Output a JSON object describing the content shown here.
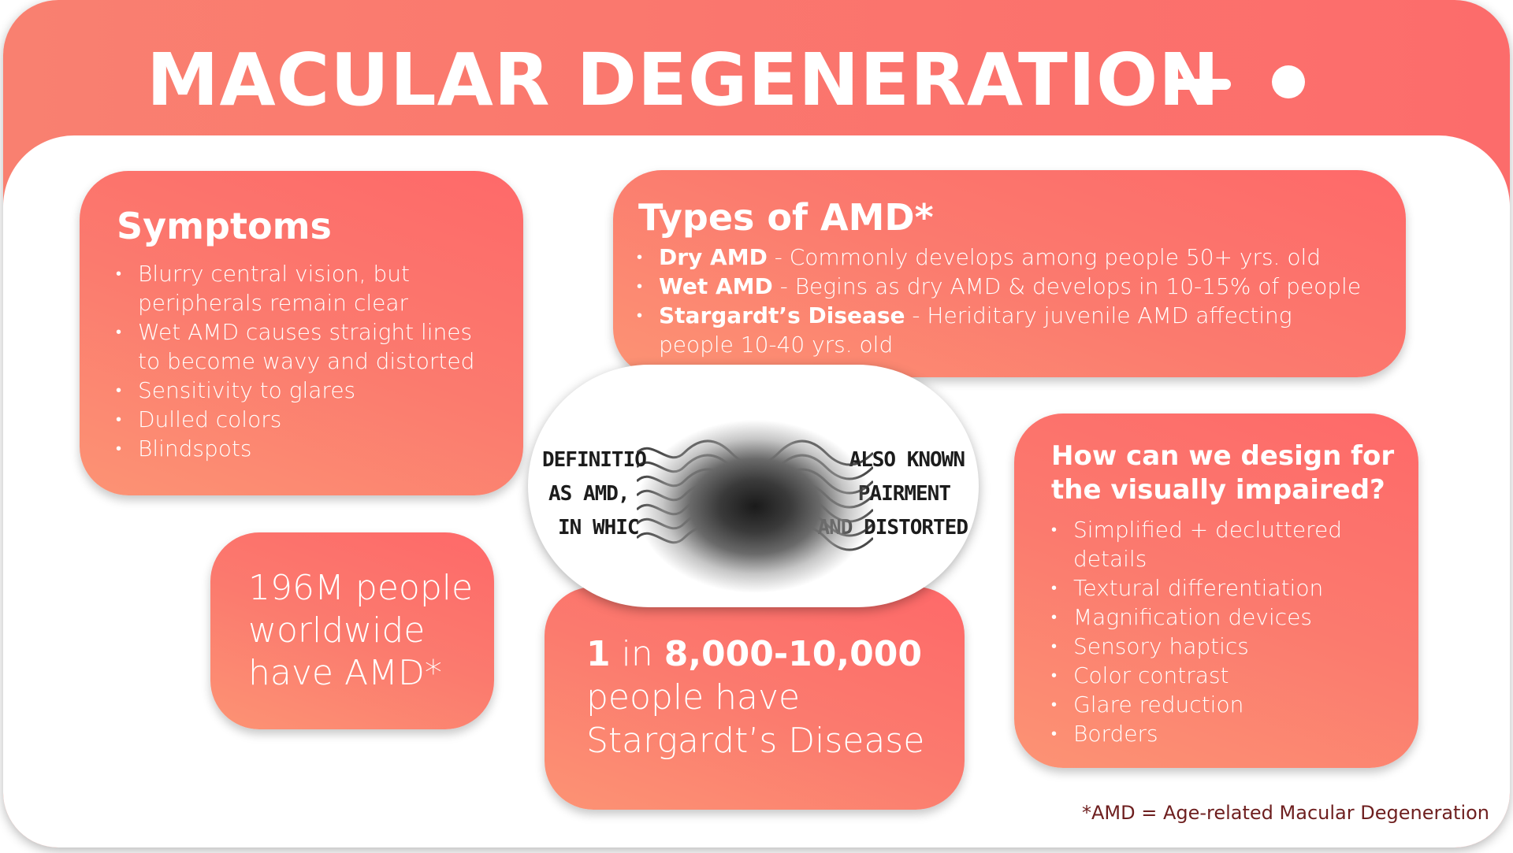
{
  "header": {
    "title": "MACULAR DEGENERATION"
  },
  "symptoms": {
    "heading": "Symptoms",
    "items": [
      [
        "Blurry central vision, but",
        "peripherals remain clear"
      ],
      [
        "Wet AMD causes straight lines",
        "to become wavy and distorted"
      ],
      [
        "Sensitivity to glares"
      ],
      [
        "Dulled colors"
      ],
      [
        "Blindspots"
      ]
    ]
  },
  "types": {
    "heading": "Types of AMD*",
    "items": [
      {
        "name": "Dry AMD",
        "desc": " - Commonly develops among people 50+ yrs. old",
        "cont": ""
      },
      {
        "name": "Wet AMD",
        "desc": " - Begins as dry AMD & develops in 10-15% of people",
        "cont": ""
      },
      {
        "name": "Stargardt’s Disease",
        "desc": " - Heriditary juvenile AMD affecting",
        "cont": "people 10-40 yrs. old"
      }
    ]
  },
  "design": {
    "heading": "How can we design for\nthe visually impaired?",
    "items": [
      [
        "Simplified + decluttered",
        "details"
      ],
      [
        "Textural differentiation"
      ],
      [
        "Magnification devices"
      ],
      [
        "Sensory haptics"
      ],
      [
        "Color contrast"
      ],
      [
        "Glare reduction"
      ],
      [
        "Borders"
      ]
    ]
  },
  "stats": {
    "worldwide": "196M people\nworldwide\nhave AMD*",
    "stargardt": {
      "num1": "1",
      "mid": " in ",
      "num2": "8,000-10,000",
      "line2": "people have",
      "line3": "Stargardt’s Disease"
    }
  },
  "simulation": {
    "lines": [
      {
        "left": "DEFINITIO",
        "right": "ALSO KNOWN"
      },
      {
        "left": "AS AMD,",
        "right": "PAIRMENT"
      },
      {
        "left": "IN WHIC",
        "right": "AND DISTORTED"
      }
    ]
  },
  "footnote": "*AMD = Age-related Macular Degeneration",
  "colors": {
    "accent": "#fc6c6b",
    "accent_light": "#fc9374",
    "footnote": "#6e1f1f"
  }
}
